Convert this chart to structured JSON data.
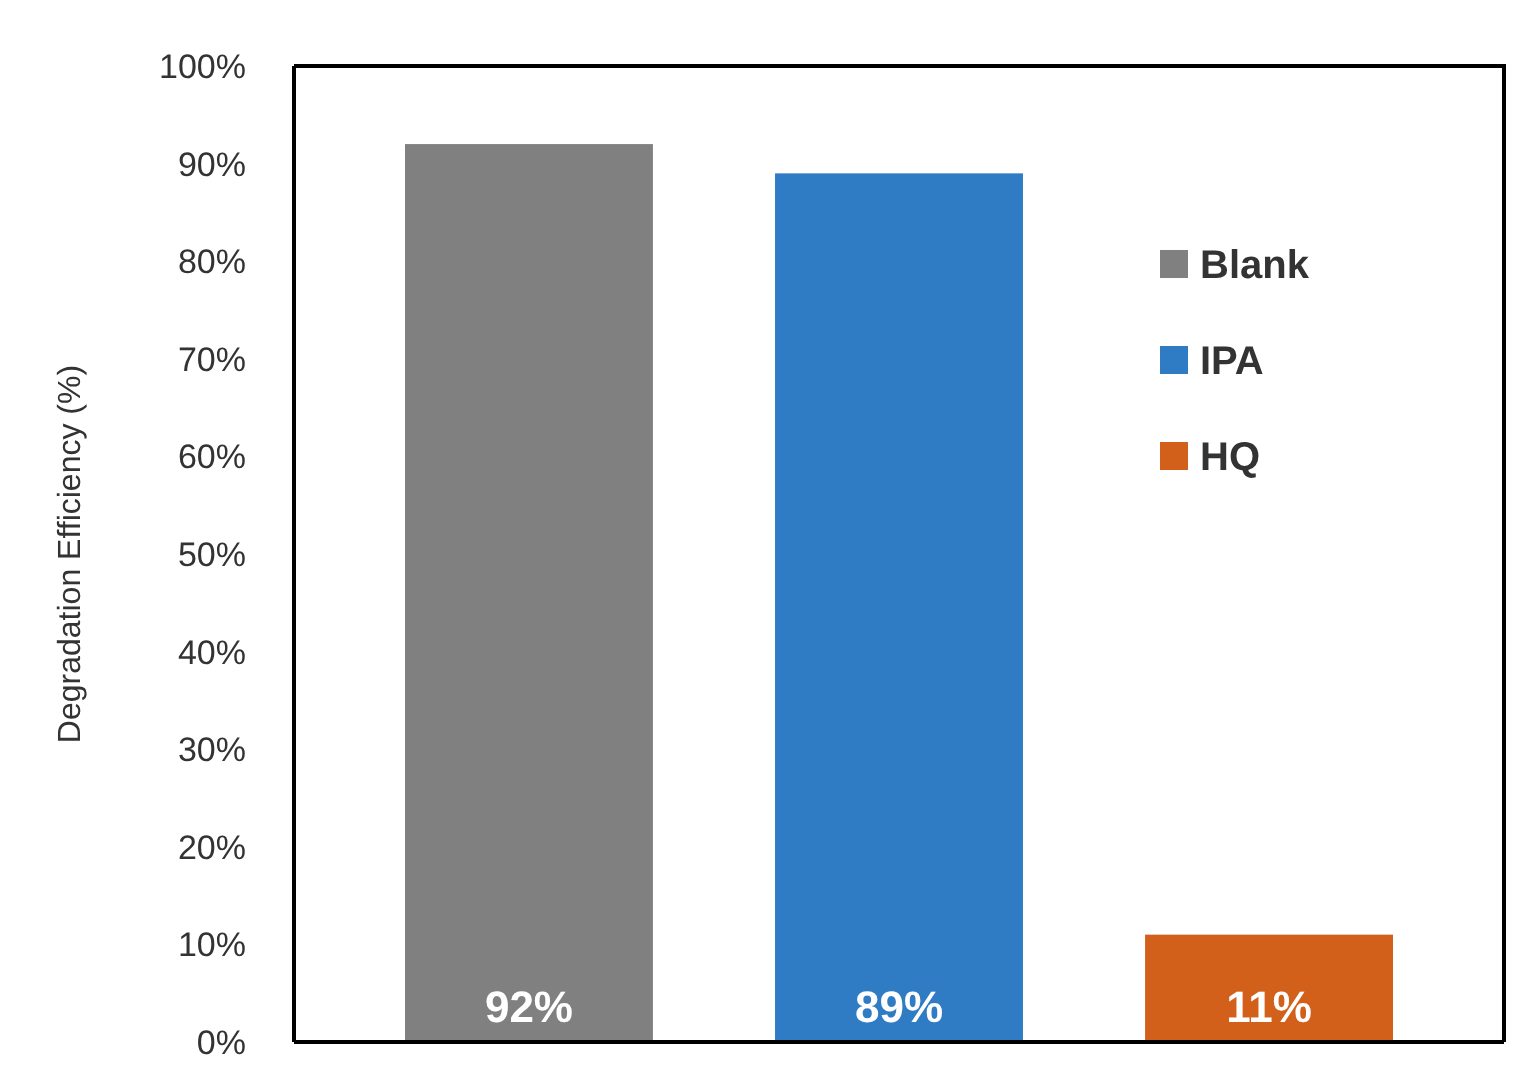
{
  "chart_data": {
    "type": "bar",
    "ylabel": "Degradation Efficiency (%)",
    "categories": [
      null,
      null,
      null
    ],
    "stacked": true,
    "series": [
      {
        "name": "Blank",
        "color": "#808080",
        "values": [
          92,
          null,
          null
        ],
        "value_labels": [
          "92%",
          null,
          null
        ]
      },
      {
        "name": "IPA",
        "color": "#2f7bc4",
        "values": [
          null,
          89,
          null
        ],
        "value_labels": [
          null,
          "89%",
          null
        ]
      },
      {
        "name": "HQ",
        "color": "#d2601a",
        "values": [
          null,
          null,
          11
        ],
        "value_labels": [
          null,
          null,
          "11%"
        ]
      }
    ],
    "ylim": [
      0,
      100
    ],
    "yticks": [
      {
        "value": 0,
        "label": "0%"
      },
      {
        "value": 10,
        "label": "10%"
      },
      {
        "value": 20,
        "label": "20%"
      },
      {
        "value": 30,
        "label": "30%"
      },
      {
        "value": 40,
        "label": "40%"
      },
      {
        "value": 50,
        "label": "50%"
      },
      {
        "value": 60,
        "label": "60%"
      },
      {
        "value": 70,
        "label": "70%"
      },
      {
        "value": 80,
        "label": "80%"
      },
      {
        "value": 90,
        "label": "90%"
      },
      {
        "value": 100,
        "label": "100%"
      }
    ],
    "grid": false,
    "legend": "right"
  }
}
